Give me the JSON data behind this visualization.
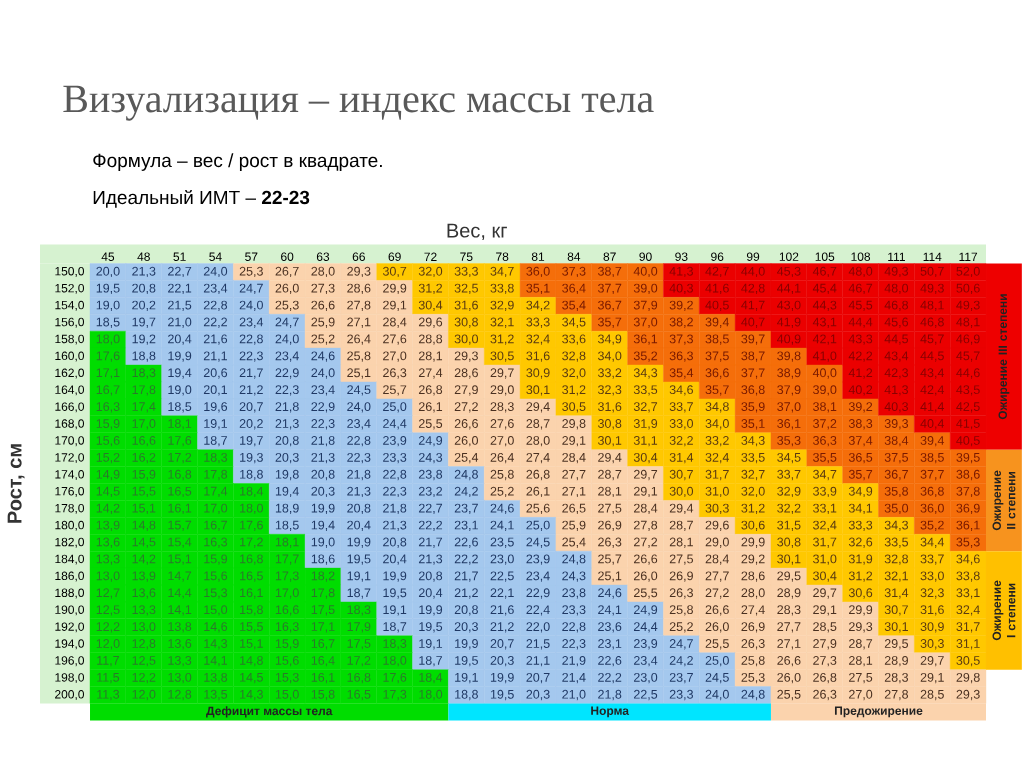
{
  "chart_data": {
    "type": "heatmap",
    "title": "Визуализация – индекс массы тела",
    "annotations": [
      "Формула – вес / рост в квадрате.",
      "Идеальный ИМТ – **22-23**",
      "Дефицит массы тела",
      "Норма",
      "Предожирение",
      "Ожирение III степени",
      "Ожирение II степени",
      "Ожирение I степени"
    ],
    "xlabel": "Вес, кг",
    "ylabel": "Рост, см",
    "categories": [
      "45",
      "48",
      "51",
      "54",
      "57",
      "60",
      "63",
      "66",
      "69",
      "72",
      "75",
      "78",
      "81",
      "84",
      "87",
      "90",
      "93",
      "96",
      "99",
      "102",
      "105",
      "108",
      "111",
      "114",
      "117"
    ],
    "y_categories": [
      "150,0",
      "152,0",
      "154,0",
      "156,0",
      "158,0",
      "160,0",
      "162,0",
      "164,0",
      "166,0",
      "168,0",
      "170,0",
      "172,0",
      "174,0",
      "176,0",
      "178,0",
      "180,0",
      "182,0",
      "184,0",
      "186,0",
      "188,0",
      "190,0",
      "192,0",
      "194,0",
      "196,0",
      "198,0",
      "200,0"
    ],
    "cells": [
      [
        20.0,
        21.3,
        22.7,
        24.0,
        25.3,
        26.7,
        28.0,
        29.3,
        30.7,
        32.0,
        33.3,
        34.7,
        36.0,
        37.3,
        38.7,
        40.0,
        41.3,
        42.7,
        44.0,
        45.3,
        46.7,
        48.0,
        49.3,
        50.7,
        52.0
      ],
      [
        19.5,
        20.8,
        22.1,
        23.4,
        24.7,
        26.0,
        27.3,
        28.6,
        29.9,
        31.2,
        32.5,
        33.8,
        35.1,
        36.4,
        37.7,
        39.0,
        40.3,
        41.6,
        42.8,
        44.1,
        45.4,
        46.7,
        48.0,
        49.3,
        50.6
      ],
      [
        19.0,
        20.2,
        21.5,
        22.8,
        24.0,
        25.3,
        26.6,
        27.8,
        29.1,
        30.4,
        31.6,
        32.9,
        34.2,
        35.4,
        36.7,
        37.9,
        39.2,
        40.5,
        41.7,
        43.0,
        44.3,
        45.5,
        46.8,
        48.1,
        49.3
      ],
      [
        18.5,
        19.7,
        21.0,
        22.2,
        23.4,
        24.7,
        25.9,
        27.1,
        28.4,
        29.6,
        30.8,
        32.1,
        33.3,
        34.5,
        35.7,
        37.0,
        38.2,
        39.4,
        40.7,
        41.9,
        43.1,
        44.4,
        45.6,
        46.8,
        48.1
      ],
      [
        18.0,
        19.2,
        20.4,
        21.6,
        22.8,
        24.0,
        25.2,
        26.4,
        27.6,
        28.8,
        30.0,
        31.2,
        32.4,
        33.6,
        34.9,
        36.1,
        37.3,
        38.5,
        39.7,
        40.9,
        42.1,
        43.3,
        44.5,
        45.7,
        46.9
      ],
      [
        17.6,
        18.8,
        19.9,
        21.1,
        22.3,
        23.4,
        24.6,
        25.8,
        27.0,
        28.1,
        29.3,
        30.5,
        31.6,
        32.8,
        34.0,
        35.2,
        36.3,
        37.5,
        38.7,
        39.8,
        41.0,
        42.2,
        43.4,
        44.5,
        45.7
      ],
      [
        17.1,
        18.3,
        19.4,
        20.6,
        21.7,
        22.9,
        24.0,
        25.1,
        26.3,
        27.4,
        28.6,
        29.7,
        30.9,
        32.0,
        33.2,
        34.3,
        35.4,
        36.6,
        37.7,
        38.9,
        40.0,
        41.2,
        42.3,
        43.4,
        44.6
      ],
      [
        16.7,
        17.8,
        19.0,
        20.1,
        21.2,
        22.3,
        23.4,
        24.5,
        25.7,
        26.8,
        27.9,
        29.0,
        30.1,
        31.2,
        32.3,
        33.5,
        34.6,
        35.7,
        36.8,
        37.9,
        39.0,
        40.2,
        41.3,
        42.4,
        43.5
      ],
      [
        16.3,
        17.4,
        18.5,
        19.6,
        20.7,
        21.8,
        22.9,
        24.0,
        25.0,
        26.1,
        27.2,
        28.3,
        29.4,
        30.5,
        31.6,
        32.7,
        33.7,
        34.8,
        35.9,
        37.0,
        38.1,
        39.2,
        40.3,
        41.4,
        42.5
      ],
      [
        15.9,
        17.0,
        18.1,
        19.1,
        20.2,
        21.3,
        22.3,
        23.4,
        24.4,
        25.5,
        26.6,
        27.6,
        28.7,
        29.8,
        30.8,
        31.9,
        33.0,
        34.0,
        35.1,
        36.1,
        37.2,
        38.3,
        39.3,
        40.4,
        41.5
      ],
      [
        15.6,
        16.6,
        17.6,
        18.7,
        19.7,
        20.8,
        21.8,
        22.8,
        23.9,
        24.9,
        26.0,
        27.0,
        28.0,
        29.1,
        30.1,
        31.1,
        32.2,
        33.2,
        34.3,
        35.3,
        36.3,
        37.4,
        38.4,
        39.4,
        40.5
      ],
      [
        15.2,
        16.2,
        17.2,
        18.3,
        19.3,
        20.3,
        21.3,
        22.3,
        23.3,
        24.3,
        25.4,
        26.4,
        27.4,
        28.4,
        29.4,
        30.4,
        31.4,
        32.4,
        33.5,
        34.5,
        35.5,
        36.5,
        37.5,
        38.5,
        39.5
      ],
      [
        14.9,
        15.9,
        16.8,
        17.8,
        18.8,
        19.8,
        20.8,
        21.8,
        22.8,
        23.8,
        24.8,
        25.8,
        26.8,
        27.7,
        28.7,
        29.7,
        30.7,
        31.7,
        32.7,
        33.7,
        34.7,
        35.7,
        36.7,
        37.7,
        38.6
      ],
      [
        14.5,
        15.5,
        16.5,
        17.4,
        18.4,
        19.4,
        20.3,
        21.3,
        22.3,
        23.2,
        24.2,
        25.2,
        26.1,
        27.1,
        28.1,
        29.1,
        30.0,
        31.0,
        32.0,
        32.9,
        33.9,
        34.9,
        35.8,
        36.8,
        37.8
      ],
      [
        14.2,
        15.1,
        16.1,
        17.0,
        18.0,
        18.9,
        19.9,
        20.8,
        21.8,
        22.7,
        23.7,
        24.6,
        25.6,
        26.5,
        27.5,
        28.4,
        29.4,
        30.3,
        31.2,
        32.2,
        33.1,
        34.1,
        35.0,
        36.0,
        36.9
      ],
      [
        13.9,
        14.8,
        15.7,
        16.7,
        17.6,
        18.5,
        19.4,
        20.4,
        21.3,
        22.2,
        23.1,
        24.1,
        25.0,
        25.9,
        26.9,
        27.8,
        28.7,
        29.6,
        30.6,
        31.5,
        32.4,
        33.3,
        34.3,
        35.2,
        36.1
      ],
      [
        13.6,
        14.5,
        15.4,
        16.3,
        17.2,
        18.1,
        19.0,
        19.9,
        20.8,
        21.7,
        22.6,
        23.5,
        24.5,
        25.4,
        26.3,
        27.2,
        28.1,
        29.0,
        29.9,
        30.8,
        31.7,
        32.6,
        33.5,
        34.4,
        35.3
      ],
      [
        13.3,
        14.2,
        15.1,
        15.9,
        16.8,
        17.7,
        18.6,
        19.5,
        20.4,
        21.3,
        22.2,
        23.0,
        23.9,
        24.8,
        25.7,
        26.6,
        27.5,
        28.4,
        29.2,
        30.1,
        31.0,
        31.9,
        32.8,
        33.7,
        34.6
      ],
      [
        13.0,
        13.9,
        14.7,
        15.6,
        16.5,
        17.3,
        18.2,
        19.1,
        19.9,
        20.8,
        21.7,
        22.5,
        23.4,
        24.3,
        25.1,
        26.0,
        26.9,
        27.7,
        28.6,
        29.5,
        30.4,
        31.2,
        32.1,
        33.0,
        33.8
      ],
      [
        12.7,
        13.6,
        14.4,
        15.3,
        16.1,
        17.0,
        17.8,
        18.7,
        19.5,
        20.4,
        21.2,
        22.1,
        22.9,
        23.8,
        24.6,
        25.5,
        26.3,
        27.2,
        28.0,
        28.9,
        29.7,
        30.6,
        31.4,
        32.3,
        33.1
      ],
      [
        12.5,
        13.3,
        14.1,
        15.0,
        15.8,
        16.6,
        17.5,
        18.3,
        19.1,
        19.9,
        20.8,
        21.6,
        22.4,
        23.3,
        24.1,
        24.9,
        25.8,
        26.6,
        27.4,
        28.3,
        29.1,
        29.9,
        30.7,
        31.6,
        32.4
      ],
      [
        12.2,
        13.0,
        13.8,
        14.6,
        15.5,
        16.3,
        17.1,
        17.9,
        18.7,
        19.5,
        20.3,
        21.2,
        22.0,
        22.8,
        23.6,
        24.4,
        25.2,
        26.0,
        26.9,
        27.7,
        28.5,
        29.3,
        30.1,
        30.9,
        31.7
      ],
      [
        12.0,
        12.8,
        13.6,
        14.3,
        15.1,
        15.9,
        16.7,
        17.5,
        18.3,
        19.1,
        19.9,
        20.7,
        21.5,
        22.3,
        23.1,
        23.9,
        24.7,
        25.5,
        26.3,
        27.1,
        27.9,
        28.7,
        29.5,
        30.3,
        31.1
      ],
      [
        11.7,
        12.5,
        13.3,
        14.1,
        14.8,
        15.6,
        16.4,
        17.2,
        18.0,
        18.7,
        19.5,
        20.3,
        21.1,
        21.9,
        22.6,
        23.4,
        24.2,
        25.0,
        25.8,
        26.6,
        27.3,
        28.1,
        28.9,
        29.7,
        30.5
      ],
      [
        11.5,
        12.2,
        13.0,
        13.8,
        14.5,
        15.3,
        16.1,
        16.8,
        17.6,
        18.4,
        19.1,
        19.9,
        20.7,
        21.4,
        22.2,
        23.0,
        23.7,
        24.5,
        25.3,
        26.0,
        26.8,
        27.5,
        28.3,
        29.1,
        29.8
      ],
      [
        11.3,
        12.0,
        12.8,
        13.5,
        14.3,
        15.0,
        15.8,
        16.5,
        17.3,
        18.0,
        18.8,
        19.5,
        20.3,
        21.0,
        21.8,
        22.5,
        23.3,
        24.0,
        24.8,
        25.5,
        26.3,
        27.0,
        27.8,
        28.5,
        29.3
      ]
    ],
    "cell_labels": [
      [
        "20,0",
        "21,3",
        "22,7",
        "24,0",
        "25,3",
        "26,7",
        "28,0",
        "29,3",
        "30,7",
        "32,0",
        "33,3",
        "34,7",
        "36,0",
        "37,3",
        "38,7",
        "40,0",
        "41,3",
        "42,7",
        "44,0",
        "45,3",
        "46,7",
        "48,0",
        "49,3",
        "50,7",
        "52,0"
      ],
      [
        "19,5",
        "20,8",
        "22,1",
        "23,4",
        "24,7",
        "26,0",
        "27,3",
        "28,6",
        "29,9",
        "31,2",
        "32,5",
        "33,8",
        "35,1",
        "36,4",
        "37,7",
        "39,0",
        "40,3",
        "41,6",
        "42,8",
        "44,1",
        "45,4",
        "46,7",
        "48,0",
        "49,3",
        "50,6"
      ],
      [
        "19,0",
        "20,2",
        "21,5",
        "22,8",
        "24,0",
        "25,3",
        "26,6",
        "27,8",
        "29,1",
        "30,4",
        "31,6",
        "32,9",
        "34,2",
        "35,4",
        "36,7",
        "37,9",
        "39,2",
        "40,5",
        "41,7",
        "43,0",
        "44,3",
        "45,5",
        "46,8",
        "48,1",
        "49,3"
      ],
      [
        "18,5",
        "19,7",
        "21,0",
        "22,2",
        "23,4",
        "24,7",
        "25,9",
        "27,1",
        "28,4",
        "29,6",
        "30,8",
        "32,1",
        "33,3",
        "34,5",
        "35,7",
        "37,0",
        "38,2",
        "39,4",
        "40,7",
        "41,9",
        "43,1",
        "44,4",
        "45,6",
        "46,8",
        "48,1"
      ],
      [
        "18,0",
        "19,2",
        "20,4",
        "21,6",
        "22,8",
        "24,0",
        "25,2",
        "26,4",
        "27,6",
        "28,8",
        "30,0",
        "31,2",
        "32,4",
        "33,6",
        "34,9",
        "36,1",
        "37,3",
        "38,5",
        "39,7",
        "40,9",
        "42,1",
        "43,3",
        "44,5",
        "45,7",
        "46,9"
      ],
      [
        "17,6",
        "18,8",
        "19,9",
        "21,1",
        "22,3",
        "23,4",
        "24,6",
        "25,8",
        "27,0",
        "28,1",
        "29,3",
        "30,5",
        "31,6",
        "32,8",
        "34,0",
        "35,2",
        "36,3",
        "37,5",
        "38,7",
        "39,8",
        "41,0",
        "42,2",
        "43,4",
        "44,5",
        "45,7"
      ],
      [
        "17,1",
        "18,3",
        "19,4",
        "20,6",
        "21,7",
        "22,9",
        "24,0",
        "25,1",
        "26,3",
        "27,4",
        "28,6",
        "29,7",
        "30,9",
        "32,0",
        "33,2",
        "34,3",
        "35,4",
        "36,6",
        "37,7",
        "38,9",
        "40,0",
        "41,2",
        "42,3",
        "43,4",
        "44,6"
      ],
      [
        "16,7",
        "17,8",
        "19,0",
        "20,1",
        "21,2",
        "22,3",
        "23,4",
        "24,5",
        "25,7",
        "26,8",
        "27,9",
        "29,0",
        "30,1",
        "31,2",
        "32,3",
        "33,5",
        "34,6",
        "35,7",
        "36,8",
        "37,9",
        "39,0",
        "40,2",
        "41,3",
        "42,4",
        "43,5"
      ],
      [
        "16,3",
        "17,4",
        "18,5",
        "19,6",
        "20,7",
        "21,8",
        "22,9",
        "24,0",
        "25,0",
        "26,1",
        "27,2",
        "28,3",
        "29,4",
        "30,5",
        "31,6",
        "32,7",
        "33,7",
        "34,8",
        "35,9",
        "37,0",
        "38,1",
        "39,2",
        "40,3",
        "41,4",
        "42,5"
      ],
      [
        "15,9",
        "17,0",
        "18,1",
        "19,1",
        "20,2",
        "21,3",
        "22,3",
        "23,4",
        "24,4",
        "25,5",
        "26,6",
        "27,6",
        "28,7",
        "29,8",
        "30,8",
        "31,9",
        "33,0",
        "34,0",
        "35,1",
        "36,1",
        "37,2",
        "38,3",
        "39,3",
        "40,4",
        "41,5"
      ],
      [
        "15,6",
        "16,6",
        "17,6",
        "18,7",
        "19,7",
        "20,8",
        "21,8",
        "22,8",
        "23,9",
        "24,9",
        "26,0",
        "27,0",
        "28,0",
        "29,1",
        "30,1",
        "31,1",
        "32,2",
        "33,2",
        "34,3",
        "35,3",
        "36,3",
        "37,4",
        "38,4",
        "39,4",
        "40,5"
      ],
      [
        "15,2",
        "16,2",
        "17,2",
        "18,3",
        "19,3",
        "20,3",
        "21,3",
        "22,3",
        "23,3",
        "24,3",
        "25,4",
        "26,4",
        "27,4",
        "28,4",
        "29,4",
        "30,4",
        "31,4",
        "32,4",
        "33,5",
        "34,5",
        "35,5",
        "36,5",
        "37,5",
        "38,5",
        "39,5"
      ],
      [
        "14,9",
        "15,9",
        "16,8",
        "17,8",
        "18,8",
        "19,8",
        "20,8",
        "21,8",
        "22,8",
        "23,8",
        "24,8",
        "25,8",
        "26,8",
        "27,7",
        "28,7",
        "29,7",
        "30,7",
        "31,7",
        "32,7",
        "33,7",
        "34,7",
        "35,7",
        "36,7",
        "37,7",
        "38,6"
      ],
      [
        "14,5",
        "15,5",
        "16,5",
        "17,4",
        "18,4",
        "19,4",
        "20,3",
        "21,3",
        "22,3",
        "23,2",
        "24,2",
        "25,2",
        "26,1",
        "27,1",
        "28,1",
        "29,1",
        "30,0",
        "31,0",
        "32,0",
        "32,9",
        "33,9",
        "34,9",
        "35,8",
        "36,8",
        "37,8"
      ],
      [
        "14,2",
        "15,1",
        "16,1",
        "17,0",
        "18,0",
        "18,9",
        "19,9",
        "20,8",
        "21,8",
        "22,7",
        "23,7",
        "24,6",
        "25,6",
        "26,5",
        "27,5",
        "28,4",
        "29,4",
        "30,3",
        "31,2",
        "32,2",
        "33,1",
        "34,1",
        "35,0",
        "36,0",
        "36,9"
      ],
      [
        "13,9",
        "14,8",
        "15,7",
        "16,7",
        "17,6",
        "18,5",
        "19,4",
        "20,4",
        "21,3",
        "22,2",
        "23,1",
        "24,1",
        "25,0",
        "25,9",
        "26,9",
        "27,8",
        "28,7",
        "29,6",
        "30,6",
        "31,5",
        "32,4",
        "33,3",
        "34,3",
        "35,2",
        "36,1"
      ],
      [
        "13,6",
        "14,5",
        "15,4",
        "16,3",
        "17,2",
        "18,1",
        "19,0",
        "19,9",
        "20,8",
        "21,7",
        "22,6",
        "23,5",
        "24,5",
        "25,4",
        "26,3",
        "27,2",
        "28,1",
        "29,0",
        "29,9",
        "30,8",
        "31,7",
        "32,6",
        "33,5",
        "34,4",
        "35,3"
      ],
      [
        "13,3",
        "14,2",
        "15,1",
        "15,9",
        "16,8",
        "17,7",
        "18,6",
        "19,5",
        "20,4",
        "21,3",
        "22,2",
        "23,0",
        "23,9",
        "24,8",
        "25,7",
        "26,6",
        "27,5",
        "28,4",
        "29,2",
        "30,1",
        "31,0",
        "31,9",
        "32,8",
        "33,7",
        "34,6"
      ],
      [
        "13,0",
        "13,9",
        "14,7",
        "15,6",
        "16,5",
        "17,3",
        "18,2",
        "19,1",
        "19,9",
        "20,8",
        "21,7",
        "22,5",
        "23,4",
        "24,3",
        "25,1",
        "26,0",
        "26,9",
        "27,7",
        "28,6",
        "29,5",
        "30,4",
        "31,2",
        "32,1",
        "33,0",
        "33,8"
      ],
      [
        "12,7",
        "13,6",
        "14,4",
        "15,3",
        "16,1",
        "17,0",
        "17,8",
        "18,7",
        "19,5",
        "20,4",
        "21,2",
        "22,1",
        "22,9",
        "23,8",
        "24,6",
        "25,5",
        "26,3",
        "27,2",
        "28,0",
        "28,9",
        "29,7",
        "30,6",
        "31,4",
        "32,3",
        "33,1"
      ],
      [
        "12,5",
        "13,3",
        "14,1",
        "15,0",
        "15,8",
        "16,6",
        "17,5",
        "18,3",
        "19,1",
        "19,9",
        "20,8",
        "21,6",
        "22,4",
        "23,3",
        "24,1",
        "24,9",
        "25,8",
        "26,6",
        "27,4",
        "28,3",
        "29,1",
        "29,9",
        "30,7",
        "31,6",
        "32,4"
      ],
      [
        "12,2",
        "13,0",
        "13,8",
        "14,6",
        "15,5",
        "16,3",
        "17,1",
        "17,9",
        "18,7",
        "19,5",
        "20,3",
        "21,2",
        "22,0",
        "22,8",
        "23,6",
        "24,4",
        "25,2",
        "26,0",
        "26,9",
        "27,7",
        "28,5",
        "29,3",
        "30,1",
        "30,9",
        "31,7"
      ],
      [
        "12,0",
        "12,8",
        "13,6",
        "14,3",
        "15,1",
        "15,9",
        "16,7",
        "17,5",
        "18,3",
        "19,1",
        "19,9",
        "20,7",
        "21,5",
        "22,3",
        "23,1",
        "23,9",
        "24,7",
        "25,5",
        "26,3",
        "27,1",
        "27,9",
        "28,7",
        "29,5",
        "30,3",
        "31,1"
      ],
      [
        "11,7",
        "12,5",
        "13,3",
        "14,1",
        "14,8",
        "15,6",
        "16,4",
        "17,2",
        "18,0",
        "18,7",
        "19,5",
        "20,3",
        "21,1",
        "21,9",
        "22,6",
        "23,4",
        "24,2",
        "25,0",
        "25,8",
        "26,6",
        "27,3",
        "28,1",
        "28,9",
        "29,7",
        "30,5"
      ],
      [
        "11,5",
        "12,2",
        "13,0",
        "13,8",
        "14,5",
        "15,3",
        "16,1",
        "16,8",
        "17,6",
        "18,4",
        "19,1",
        "19,9",
        "20,7",
        "21,4",
        "22,2",
        "23,0",
        "23,7",
        "24,5",
        "25,3",
        "26,0",
        "26,8",
        "27,5",
        "28,3",
        "29,1",
        "29,8"
      ],
      [
        "11,3",
        "12,0",
        "12,8",
        "13,5",
        "14,3",
        "15,0",
        "15,8",
        "16,5",
        "17,3",
        "18,0",
        "18,8",
        "19,5",
        "20,3",
        "21,0",
        "21,8",
        "22,5",
        "23,3",
        "24,0",
        "24,8",
        "25,5",
        "26,3",
        "27,0",
        "27,8",
        "28,5",
        "29,3"
      ]
    ]
  }
}
